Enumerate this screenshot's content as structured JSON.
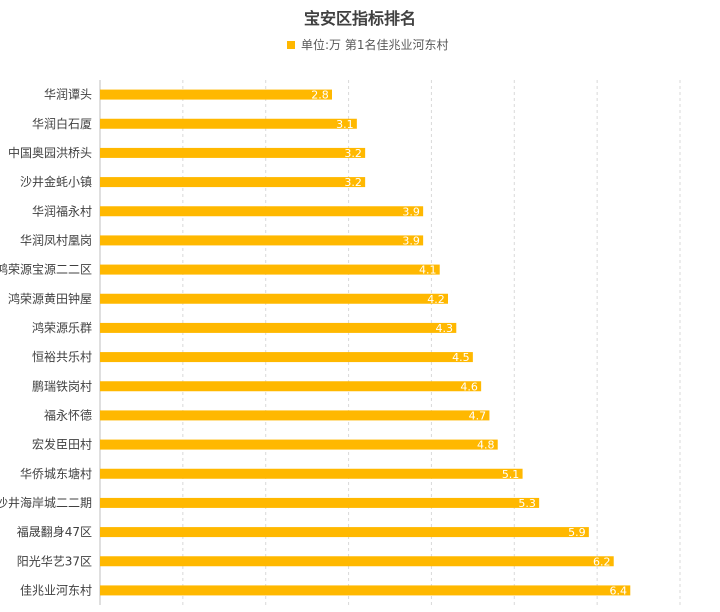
{
  "chart_data": {
    "type": "bar",
    "orientation": "horizontal",
    "title": "宝安区指标排名",
    "legend": {
      "label": "单位:万 第1名佳兆业河东村",
      "position": "top"
    },
    "categories": [
      "华润谭头",
      "华润白石厦",
      "中国奥园洪桥头",
      "沙井金蚝小镇",
      "华润福永村",
      "华润凤村凰岗",
      "鸿荣源宝源二二区",
      "鸿荣源黄田钟屋",
      "鸿荣源乐群",
      "恒裕共乐村",
      "鹏瑞铁岗村",
      "福永怀德",
      "宏发臣田村",
      "华侨城东塘村",
      "沙井海岸城二二期",
      "福晟翻身47区",
      "阳光华艺37区",
      "佳兆业河东村"
    ],
    "values": [
      2.8,
      3.1,
      3.2,
      3.2,
      3.9,
      3.9,
      4.1,
      4.2,
      4.3,
      4.5,
      4.6,
      4.7,
      4.8,
      5.1,
      5.3,
      5.9,
      6.2,
      6.4
    ],
    "xlim": [
      0,
      7
    ],
    "grid": true,
    "colors": {
      "bar": "#FFB800",
      "label": "#FFFFFF"
    }
  }
}
